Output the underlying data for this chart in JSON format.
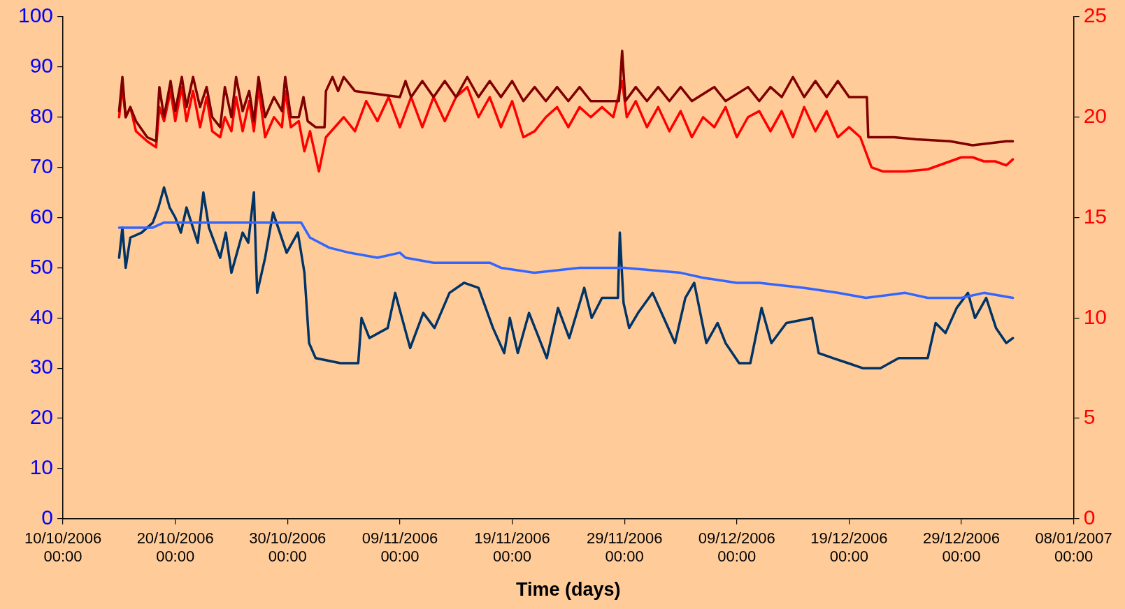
{
  "chart_data": {
    "type": "line",
    "xlabel": "Time (days)",
    "legend": false,
    "marker": "none",
    "line_style": "solid",
    "xlim": [
      "2006-10-10",
      "2007-01-08"
    ],
    "xticks": [
      {
        "value": "2006-10-10",
        "label": "10/10/2006 00:00"
      },
      {
        "value": "2006-10-20",
        "label": "20/10/2006 00:00"
      },
      {
        "value": "2006-10-30",
        "label": "30/10/2006 00:00"
      },
      {
        "value": "2006-11-09",
        "label": "09/11/2006 00:00"
      },
      {
        "value": "2006-11-19",
        "label": "19/11/2006 00:00"
      },
      {
        "value": "2006-11-29",
        "label": "29/11/2006 00:00"
      },
      {
        "value": "2006-12-09",
        "label": "09/12/2006 00:00"
      },
      {
        "value": "2006-12-19",
        "label": "19/12/2006 00:00"
      },
      {
        "value": "2006-12-29",
        "label": "29/12/2006 00:00"
      },
      {
        "value": "2007-01-08",
        "label": "08/01/2007 00:00"
      }
    ],
    "ylim": [
      0,
      100
    ],
    "yticks": [
      0,
      10,
      20,
      30,
      40,
      50,
      60,
      70,
      80,
      90,
      100
    ],
    "y2lim": [
      0,
      25
    ],
    "y2ticks": [
      0,
      5,
      10,
      15,
      20,
      25
    ],
    "series": [
      {
        "color": "#800000",
        "axis": "y2",
        "x": [
          "2006-10-15",
          "2006-10-15T07:00",
          "2006-10-15T14:00",
          "2006-10-16",
          "2006-10-16T12:00",
          "2006-10-17T12:00",
          "2006-10-18T07:00",
          "2006-10-18T14:00",
          "2006-10-19",
          "2006-10-19T14:00",
          "2006-10-20",
          "2006-10-20T14:00",
          "2006-10-21",
          "2006-10-21T14:00",
          "2006-10-22T05:00",
          "2006-10-22T19:00",
          "2006-10-23T07:00",
          "2006-10-24",
          "2006-10-24T10:00",
          "2006-10-25",
          "2006-10-25T10:00",
          "2006-10-26",
          "2006-10-26T14:00",
          "2006-10-27",
          "2006-10-27T10:00",
          "2006-10-28",
          "2006-10-28T19:00",
          "2006-10-29T12:00",
          "2006-10-29T19:00",
          "2006-10-30T07:00",
          "2006-10-31",
          "2006-10-31T10:00",
          "2006-10-31T19:00",
          "2006-11-01T12:00",
          "2006-11-02T07:00",
          "2006-11-02T10:00",
          "2006-11-03",
          "2006-11-03T12:00",
          "2006-11-04",
          "2006-11-05",
          "2006-11-09",
          "2006-11-09T12:00",
          "2006-11-10",
          "2006-11-11",
          "2006-11-12",
          "2006-11-13",
          "2006-11-14",
          "2006-11-15",
          "2006-11-16",
          "2006-11-17",
          "2006-11-18",
          "2006-11-19",
          "2006-11-20",
          "2006-11-21",
          "2006-11-22",
          "2006-11-23",
          "2006-11-24",
          "2006-11-25",
          "2006-11-26",
          "2006-11-28T12:00",
          "2006-11-28T19:00",
          "2006-11-29T02:00",
          "2006-11-30",
          "2006-12-01",
          "2006-12-02",
          "2006-12-03",
          "2006-12-04",
          "2006-12-05",
          "2006-12-07",
          "2006-12-08",
          "2006-12-10",
          "2006-12-11",
          "2006-12-12",
          "2006-12-13",
          "2006-12-14",
          "2006-12-15",
          "2006-12-16",
          "2006-12-17",
          "2006-12-18",
          "2006-12-19",
          "2006-12-20T14:00",
          "2006-12-20T17:00",
          "2006-12-23",
          "2006-12-25",
          "2006-12-28",
          "2006-12-30",
          "2007-01-02",
          "2007-01-02T14:00"
        ],
        "values": [
          20.3,
          22,
          20,
          20.5,
          19.8,
          19,
          18.8,
          21.5,
          20,
          21.8,
          20.3,
          22,
          20.5,
          22,
          20.5,
          21.5,
          20,
          19.5,
          21.5,
          20,
          22,
          20.3,
          21.3,
          19.8,
          22,
          20,
          21,
          20.3,
          22,
          20,
          20,
          21,
          19.8,
          19.5,
          19.5,
          21.3,
          22,
          21.3,
          22,
          21.3,
          21,
          21.8,
          21,
          21.8,
          21,
          21.8,
          21,
          22,
          21,
          21.8,
          21,
          21.8,
          20.8,
          21.5,
          20.8,
          21.5,
          20.8,
          21.5,
          20.8,
          20.8,
          23.3,
          20.8,
          21.5,
          20.8,
          21.5,
          20.8,
          21.5,
          20.8,
          21.5,
          20.8,
          21.5,
          20.8,
          21.5,
          21,
          22,
          21,
          21.8,
          21,
          21.8,
          21,
          21,
          19,
          19,
          18.9,
          18.8,
          18.6,
          18.8,
          18.8
        ]
      },
      {
        "color": "#ff0000",
        "axis": "y2",
        "x": [
          "2006-10-15",
          "2006-10-15T07:00",
          "2006-10-15T14:00",
          "2006-10-16",
          "2006-10-16T12:00",
          "2006-10-17T12:00",
          "2006-10-18T07:00",
          "2006-10-18T14:00",
          "2006-10-19",
          "2006-10-19T14:00",
          "2006-10-20",
          "2006-10-20T14:00",
          "2006-10-21",
          "2006-10-21T14:00",
          "2006-10-22T05:00",
          "2006-10-22T19:00",
          "2006-10-23T07:00",
          "2006-10-24",
          "2006-10-24T10:00",
          "2006-10-25",
          "2006-10-25T10:00",
          "2006-10-26",
          "2006-10-26T14:00",
          "2006-10-27",
          "2006-10-27T10:00",
          "2006-10-28",
          "2006-10-28T19:00",
          "2006-10-29T12:00",
          "2006-10-29T19:00",
          "2006-10-30T07:00",
          "2006-10-31",
          "2006-10-31T12:00",
          "2006-11-01",
          "2006-11-01T19:00",
          "2006-11-02T10:00",
          "2006-11-04",
          "2006-11-05",
          "2006-11-06",
          "2006-11-07",
          "2006-11-08",
          "2006-11-09",
          "2006-11-10",
          "2006-11-11",
          "2006-11-12",
          "2006-11-13",
          "2006-11-14",
          "2006-11-15",
          "2006-11-16",
          "2006-11-17",
          "2006-11-18",
          "2006-11-19",
          "2006-11-20",
          "2006-11-21",
          "2006-11-22",
          "2006-11-23",
          "2006-11-24",
          "2006-11-25",
          "2006-11-26",
          "2006-11-27",
          "2006-11-28",
          "2006-11-28T19:00",
          "2006-11-29T05:00",
          "2006-11-30",
          "2006-12-01",
          "2006-12-02",
          "2006-12-03",
          "2006-12-04",
          "2006-12-05",
          "2006-12-06",
          "2006-12-07",
          "2006-12-08",
          "2006-12-09",
          "2006-12-10",
          "2006-12-11",
          "2006-12-12",
          "2006-12-13",
          "2006-12-14",
          "2006-12-15",
          "2006-12-16",
          "2006-12-17",
          "2006-12-18",
          "2006-12-19",
          "2006-12-20",
          "2006-12-21",
          "2006-12-22",
          "2006-12-24",
          "2006-12-26",
          "2006-12-28",
          "2006-12-29",
          "2006-12-30",
          "2006-12-31",
          "2007-01-01",
          "2007-01-02",
          "2007-01-02T14:00"
        ],
        "values": [
          20,
          21.5,
          20,
          20.5,
          19.3,
          18.8,
          18.5,
          20.5,
          19.8,
          21.3,
          19.8,
          21.5,
          19.8,
          21.3,
          19.5,
          21,
          19.3,
          19,
          20,
          19.3,
          21,
          19.3,
          20.8,
          19.3,
          21.5,
          19,
          20,
          19.5,
          21.3,
          19.5,
          19.8,
          18.3,
          19.3,
          17.3,
          19,
          20,
          19.3,
          20.8,
          19.8,
          21,
          19.5,
          21,
          19.5,
          21,
          19.8,
          21,
          21.5,
          20,
          21,
          19.5,
          20.8,
          19,
          19.3,
          20,
          20.5,
          19.5,
          20.5,
          20,
          20.5,
          20,
          21.8,
          20,
          20.8,
          19.5,
          20.5,
          19.3,
          20.3,
          19,
          20,
          19.5,
          20.5,
          19,
          20,
          20.3,
          19.3,
          20.3,
          19,
          20.5,
          19.3,
          20.3,
          19,
          19.5,
          19,
          17.5,
          17.3,
          17.3,
          17.4,
          17.8,
          18,
          18,
          17.8,
          17.8,
          17.6,
          17.9
        ]
      },
      {
        "color": "#3366ff",
        "x": [
          "2006-10-15",
          "2006-10-18",
          "2006-10-19",
          "2006-10-31T05:00",
          "2006-11-01",
          "2006-11-02T17:00",
          "2006-11-04T12:00",
          "2006-11-07",
          "2006-11-09",
          "2006-11-09T12:00",
          "2006-11-12",
          "2006-11-17",
          "2006-11-18",
          "2006-11-21",
          "2006-11-25",
          "2006-11-29",
          "2006-12-04",
          "2006-12-06",
          "2006-12-09",
          "2006-12-11",
          "2006-12-15",
          "2006-12-18",
          "2006-12-20T12:00",
          "2006-12-24",
          "2006-12-26",
          "2006-12-29",
          "2006-12-31",
          "2007-01-02T14:00"
        ],
        "values": [
          58,
          58,
          59,
          59,
          56,
          54,
          53,
          52,
          53,
          52,
          51,
          51,
          50,
          49,
          50,
          50,
          49,
          48,
          47,
          47,
          46,
          45,
          44,
          45,
          44,
          44,
          45,
          44
        ]
      },
      {
        "color": "#003366",
        "x": [
          "2006-10-15",
          "2006-10-15T07:00",
          "2006-10-15T14:00",
          "2006-10-16",
          "2006-10-17",
          "2006-10-18",
          "2006-10-18T12:00",
          "2006-10-19",
          "2006-10-19T12:00",
          "2006-10-20",
          "2006-10-20T12:00",
          "2006-10-21",
          "2006-10-22",
          "2006-10-22T12:00",
          "2006-10-23",
          "2006-10-24",
          "2006-10-24T12:00",
          "2006-10-25",
          "2006-10-26",
          "2006-10-26T12:00",
          "2006-10-27",
          "2006-10-27T07:00",
          "2006-10-28",
          "2006-10-28T17:00",
          "2006-10-29T22:00",
          "2006-10-30T22:00",
          "2006-10-31T12:00",
          "2006-10-31T22:00",
          "2006-11-01T12:00",
          "2006-11-03T17:00",
          "2006-11-05T07:00",
          "2006-11-05T14:00",
          "2006-11-06T07:00",
          "2006-11-07T22:00",
          "2006-11-08T14:00",
          "2006-11-09T22:00",
          "2006-11-11T02:00",
          "2006-11-12T02:00",
          "2006-11-13T10:00",
          "2006-11-14T17:00",
          "2006-11-16",
          "2006-11-17T07:00",
          "2006-11-18T07:00",
          "2006-11-18T19:00",
          "2006-11-19T12:00",
          "2006-11-20T12:00",
          "2006-11-21T05:00",
          "2006-11-22T02:00",
          "2006-11-23T02:00",
          "2006-11-24T02:00",
          "2006-11-25T10:00",
          "2006-11-26T02:00",
          "2006-11-27",
          "2006-11-28T10:00",
          "2006-11-28T14:00",
          "2006-11-28T22:00",
          "2006-11-29T10:00",
          "2006-11-30T05:00",
          "2006-12-01T12:00",
          "2006-12-02T12:00",
          "2006-12-03T12:00",
          "2006-12-04T10:00",
          "2006-12-05T05:00",
          "2006-12-06T07:00",
          "2006-12-07T07:00",
          "2006-12-08",
          "2006-12-09T05:00",
          "2006-12-10T05:00",
          "2006-12-11T05:00",
          "2006-12-12T02:00",
          "2006-12-13T10:00",
          "2006-12-15T17:00",
          "2006-12-16T07:00",
          "2006-12-17T14:00",
          "2006-12-18T22:00",
          "2006-12-20T05:00",
          "2006-12-21T19:00",
          "2006-12-23T10:00",
          "2006-12-26",
          "2006-12-26T17:00",
          "2006-12-27T14:00",
          "2006-12-28T14:00",
          "2006-12-29T14:00",
          "2006-12-30T05:00",
          "2006-12-31T05:00",
          "2007-01-01T02:00",
          "2007-01-02",
          "2007-01-02T14:00"
        ],
        "values": [
          52,
          58,
          50,
          56,
          57,
          59,
          62,
          66,
          62,
          60,
          57,
          62,
          55,
          65,
          58,
          52,
          57,
          49,
          57,
          55,
          65,
          45,
          52,
          61,
          53,
          57,
          49,
          35,
          32,
          31,
          31,
          40,
          36,
          38,
          45,
          34,
          41,
          38,
          45,
          47,
          46,
          38,
          33,
          40,
          33,
          41,
          37,
          32,
          42,
          36,
          46,
          40,
          44,
          44,
          57,
          43,
          38,
          41,
          45,
          40,
          35,
          44,
          47,
          35,
          39,
          35,
          31,
          31,
          42,
          35,
          39,
          40,
          33,
          32,
          31,
          30,
          30,
          32,
          32,
          39,
          37,
          42,
          45,
          40,
          44,
          38,
          35,
          36
        ]
      }
    ]
  }
}
